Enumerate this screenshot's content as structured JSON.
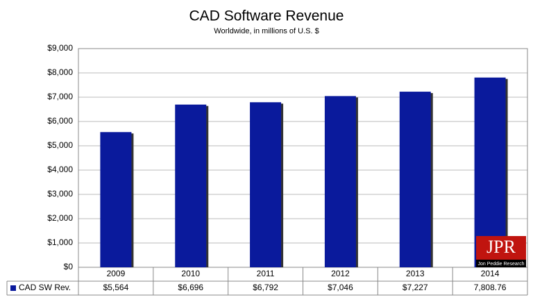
{
  "chart_data": {
    "type": "bar",
    "title": "CAD Software Revenue",
    "subtitle": "Worldwide, in millions of U.S. $",
    "categories": [
      "2009",
      "2010",
      "2011",
      "2012",
      "2013",
      "2014"
    ],
    "series": [
      {
        "name": "CAD SW Rev.",
        "color": "#0a1a9c",
        "values": [
          5564,
          6696,
          6792,
          7046,
          7227,
          7808.76
        ],
        "value_labels": [
          "$5,564",
          "$6,696",
          "$6,792",
          "$7,046",
          "$7,227",
          "7,808.76"
        ]
      }
    ],
    "ylim": [
      0,
      9000
    ],
    "yticks": [
      {
        "value": 0,
        "label": "$0"
      },
      {
        "value": 1000,
        "label": "$1,000"
      },
      {
        "value": 2000,
        "label": "$2,000"
      },
      {
        "value": 3000,
        "label": "$3,000"
      },
      {
        "value": 4000,
        "label": "$4,000"
      },
      {
        "value": 5000,
        "label": "$5,000"
      },
      {
        "value": 6000,
        "label": "$6,000"
      },
      {
        "value": 7000,
        "label": "$7,000"
      },
      {
        "value": 8000,
        "label": "$8,000"
      },
      {
        "value": 9000,
        "label": "$9,000"
      }
    ],
    "grid": true,
    "logo": {
      "text": "JPR",
      "subtext": "Jon Peddie Research"
    }
  }
}
